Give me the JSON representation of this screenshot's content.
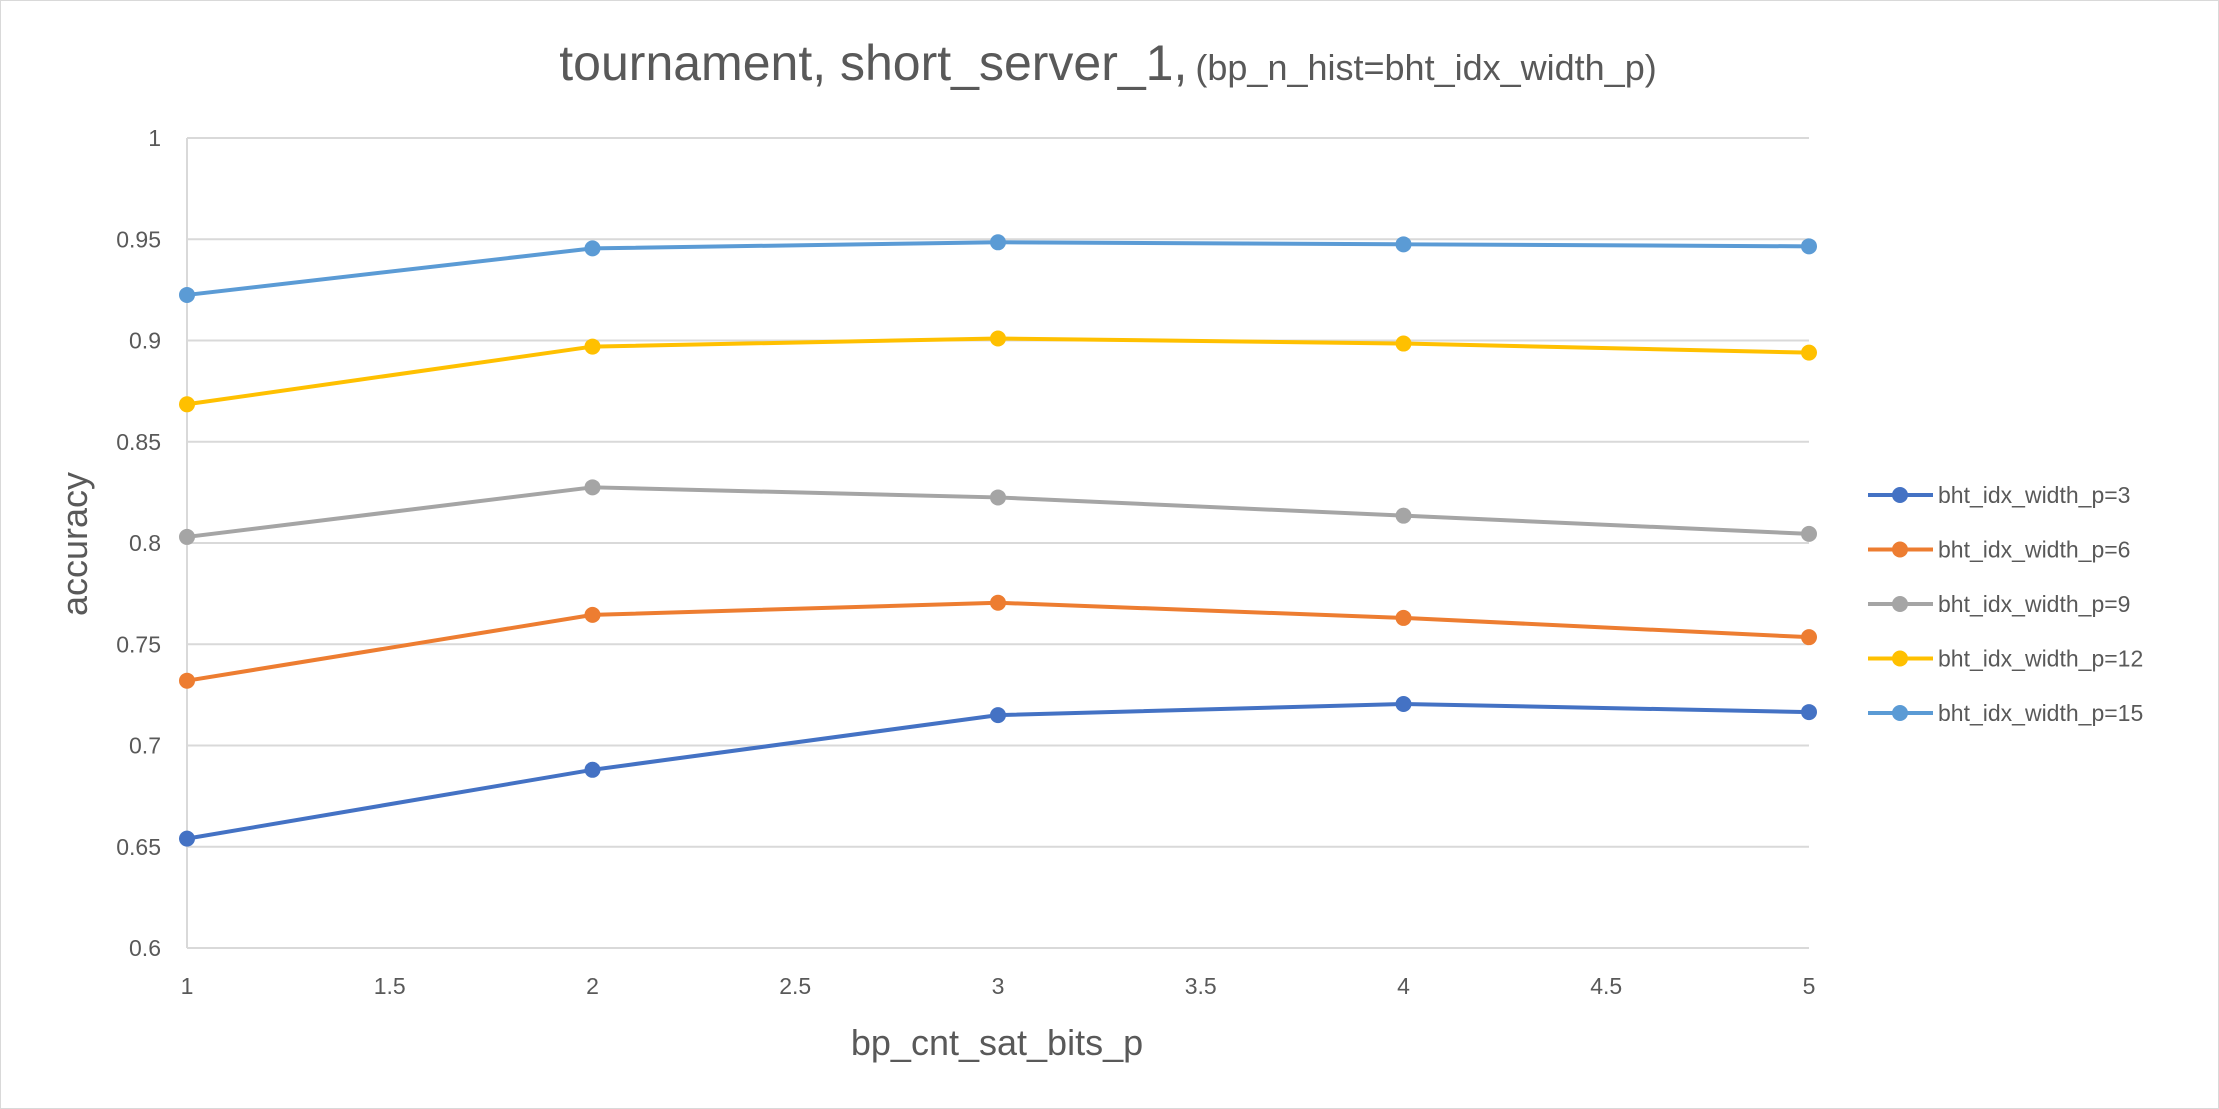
{
  "chart_data": {
    "type": "line",
    "title": "tournament, short_server_1,",
    "subtitle": "(bp_n_hist=bht_idx_width_p)",
    "xlabel": "bp_cnt_sat_bits_p",
    "ylabel": "accuracy",
    "xlim": [
      1,
      5
    ],
    "ylim": [
      0.6,
      1
    ],
    "x_ticks": [
      "1",
      "1.5",
      "2",
      "2.5",
      "3",
      "3.5",
      "4",
      "4.5",
      "5"
    ],
    "y_ticks": [
      "0.6",
      "0.65",
      "0.7",
      "0.75",
      "0.8",
      "0.85",
      "0.9",
      "0.95",
      "1"
    ],
    "x": [
      1,
      2,
      3,
      4,
      5
    ],
    "grid": "horizontal",
    "legend_position": "right",
    "series": [
      {
        "name": "bht_idx_width_p=3",
        "color": "#4472C4",
        "values": [
          0.654,
          0.688,
          0.715,
          0.7205,
          0.7165
        ]
      },
      {
        "name": "bht_idx_width_p=6",
        "color": "#ED7D31",
        "values": [
          0.732,
          0.7645,
          0.7705,
          0.763,
          0.7535
        ]
      },
      {
        "name": "bht_idx_width_p=9",
        "color": "#A5A5A5",
        "values": [
          0.803,
          0.8275,
          0.8225,
          0.8135,
          0.8045
        ]
      },
      {
        "name": "bht_idx_width_p=12",
        "color": "#FFC000",
        "values": [
          0.8685,
          0.897,
          0.901,
          0.8985,
          0.894
        ]
      },
      {
        "name": "bht_idx_width_p=15",
        "color": "#5B9BD5",
        "values": [
          0.9225,
          0.9455,
          0.9485,
          0.9475,
          0.9465
        ]
      }
    ]
  }
}
